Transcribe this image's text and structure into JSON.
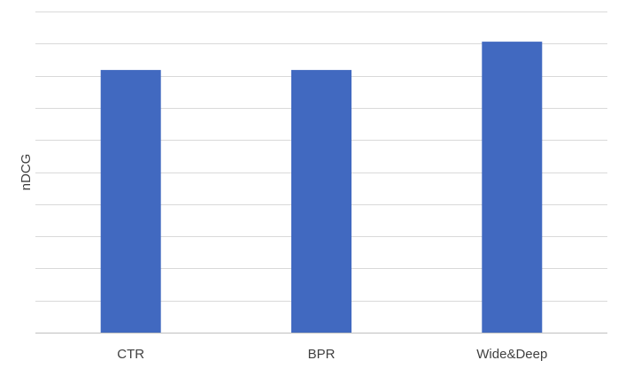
{
  "chart_data": {
    "type": "bar",
    "title": "",
    "xlabel": "",
    "ylabel": "nDCG",
    "categories": [
      "CTR",
      "BPR",
      "Wide&Deep"
    ],
    "values": [
      0.818,
      0.818,
      0.906
    ],
    "ylim": [
      0,
      1
    ],
    "ytick_step": 0.1,
    "show_ytick_labels": false,
    "grid": true,
    "legend": "none",
    "bar_color": "#4169C0",
    "grid_color": "#D9D9D9",
    "axis_color": "#BFBFBF",
    "text_color": "#404040"
  }
}
